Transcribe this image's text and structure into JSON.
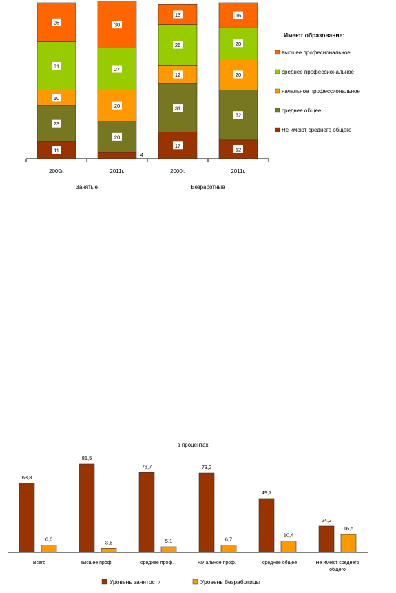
{
  "chart_data": [
    {
      "type": "bar",
      "stacked": true,
      "title": "",
      "categories": [
        "2000г.",
        "2011г.",
        "2000г.",
        "2011г."
      ],
      "groups": [
        "Занятые",
        "Безработные"
      ],
      "legend_title": "Имеют образование:",
      "legend_position": "right",
      "grid": false,
      "ylim": [
        0,
        100
      ],
      "series": [
        {
          "name": "Не имеют среднего общего",
          "values": [
            11,
            4,
            17,
            12
          ],
          "color": "#993300"
        },
        {
          "name": "среднее общее",
          "values": [
            23,
            20,
            31,
            32
          ],
          "color": "#777722"
        },
        {
          "name": "начальное профессиональное",
          "values": [
            10,
            20,
            12,
            20
          ],
          "color": "#ff9900"
        },
        {
          "name": "среднее профессиональное",
          "values": [
            31,
            27,
            26,
            20
          ],
          "color": "#99cc00"
        },
        {
          "name": "высшее професиональное",
          "values": [
            25,
            30,
            13,
            16
          ],
          "color": "#ff6600"
        }
      ],
      "legend_order": [
        4,
        3,
        2,
        1,
        0
      ],
      "label_outside_index": [
        1
      ]
    },
    {
      "type": "bar",
      "title": "в процентах",
      "categories": [
        "Всего",
        "высшее проф.",
        "среднее проф.",
        "начальное проф.",
        "среднее  общее",
        "Не имеют среднего общего"
      ],
      "legend_position": "bottom",
      "grid": false,
      "ylim": [
        0,
        90
      ],
      "series": [
        {
          "name": "Уровень занятости",
          "values": [
            63.8,
            81.5,
            73.7,
            73.2,
            49.7,
            24.2
          ],
          "labels": [
            "63,8",
            "81,5",
            "73,7",
            "73,2",
            "49,7",
            "24,2"
          ],
          "color": "#993300"
        },
        {
          "name": "Уровень безработицы",
          "values": [
            6.6,
            3.6,
            5.1,
            6.7,
            10.4,
            16.5
          ],
          "labels": [
            "6,6",
            "3,6",
            "5,1",
            "6,7",
            "10,4",
            "16,5"
          ],
          "color": "#ff9900"
        }
      ]
    }
  ]
}
